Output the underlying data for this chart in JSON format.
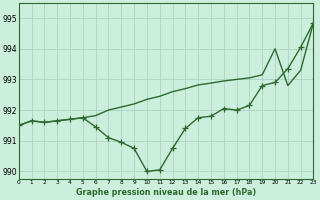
{
  "title": "Graphe pression niveau de la mer (hPa)",
  "x_hours": [
    0,
    1,
    2,
    3,
    4,
    5,
    6,
    7,
    8,
    9,
    10,
    11,
    12,
    13,
    14,
    15,
    16,
    17,
    18,
    19,
    20,
    21,
    22,
    23
  ],
  "line_measured_y": [
    991.5,
    991.65,
    991.6,
    991.65,
    991.7,
    991.75,
    991.45,
    991.1,
    990.95,
    990.75,
    990.0,
    990.05,
    990.75,
    991.4,
    991.75,
    991.8,
    992.05,
    992.0,
    992.15,
    992.8,
    992.9,
    993.35,
    994.05,
    994.85
  ],
  "line_trend_y": [
    991.5,
    991.65,
    991.6,
    991.65,
    991.7,
    991.75,
    991.82,
    992.0,
    992.1,
    992.2,
    992.35,
    992.45,
    992.6,
    992.7,
    992.82,
    992.88,
    992.95,
    993.0,
    993.05,
    993.15,
    994.0,
    992.8,
    993.3,
    994.85
  ],
  "line_color": "#2d6a2d",
  "bg_color": "#cceedd",
  "grid_color": "#aaccbb",
  "ylim_min": 989.75,
  "ylim_max": 995.5,
  "yticks": [
    990,
    991,
    992,
    993,
    994,
    995
  ],
  "xlim_min": 0,
  "xlim_max": 23
}
